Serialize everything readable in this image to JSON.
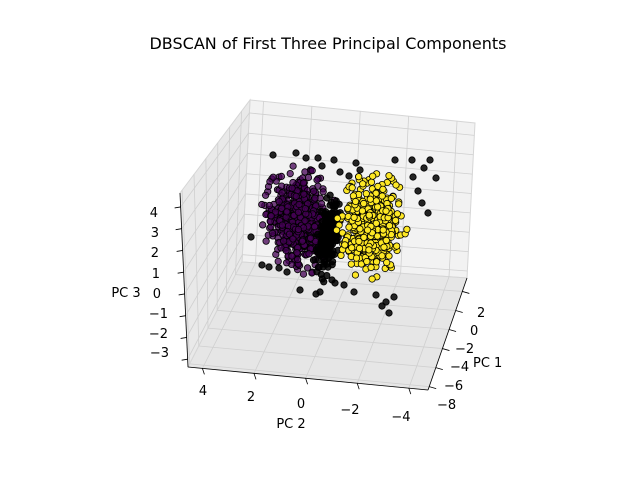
{
  "chart_data": {
    "type": "scatter",
    "projection": "3d",
    "title": "DBSCAN of First Three Principal Components",
    "xlabel": "PC 1",
    "ylabel": "PC 2",
    "zlabel": "PC 3",
    "xticks": [
      "2",
      "0",
      "−2",
      "−4",
      "−6",
      "−8"
    ],
    "yticks": [
      "4",
      "2",
      "0",
      "−2",
      "−4"
    ],
    "zticks": [
      "4",
      "3",
      "2",
      "1",
      "0",
      "−1",
      "−2",
      "−3"
    ],
    "grid": true,
    "legend": "none",
    "series": [
      {
        "label_value": 0,
        "color": "#440154"
      },
      {
        "label_value": 1,
        "color": "#fde725"
      },
      {
        "label_value": -1,
        "color": "#000000"
      }
    ]
  }
}
